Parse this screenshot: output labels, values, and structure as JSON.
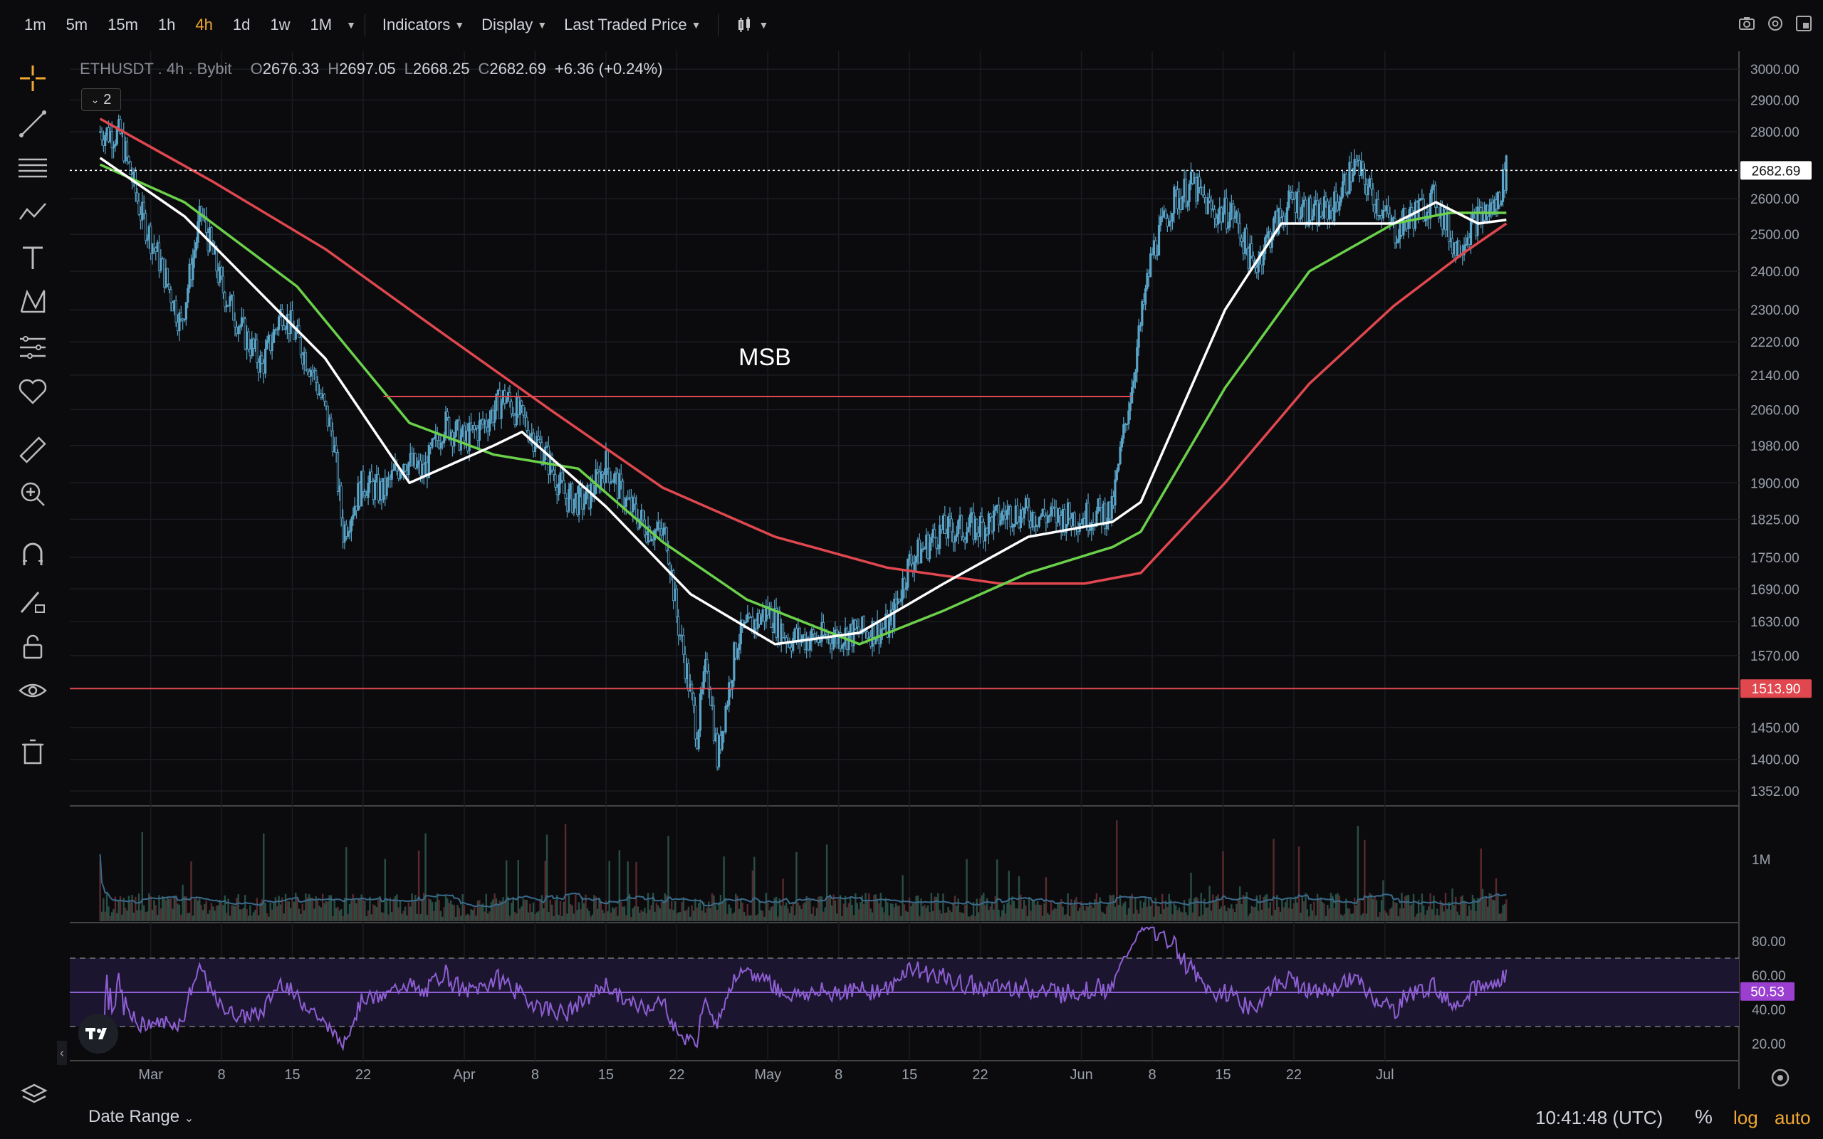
{
  "toolbar": {
    "timeframes": [
      "1m",
      "5m",
      "15m",
      "1h",
      "4h",
      "1d",
      "1w",
      "1M"
    ],
    "active_timeframe": "4h",
    "indicators_label": "Indicators",
    "display_label": "Display",
    "price_type_label": "Last Traded Price"
  },
  "legend": {
    "symbol": "ETHUSDT",
    "interval": "4h",
    "exchange": "Bybit",
    "o_label": "O",
    "o": "2676.33",
    "h_label": "H",
    "h": "2697.05",
    "l_label": "L",
    "l": "2668.25",
    "c_label": "C",
    "c": "2682.69",
    "change": "+6.36 (+0.24%)",
    "indicator_count": "2"
  },
  "bottom": {
    "date_range_label": "Date Range",
    "clock": "10:41:48 (UTC)",
    "percent_label": "%",
    "log_label": "log",
    "auto_label": "auto"
  },
  "colors": {
    "background": "#0b0b0e",
    "candle": "#5aa4c8",
    "ma_white": "#ffffff",
    "ma_green": "#6bd14a",
    "ma_red": "#e0474e",
    "rsi": "#8d5fd3",
    "accent": "#f0a830"
  },
  "chart_data": [
    {
      "type": "line",
      "subtype": "candlestick",
      "scale": "log",
      "x_ticks": [
        "Mar",
        "8",
        "15",
        "22",
        "Apr",
        "8",
        "15",
        "22",
        "May",
        "8",
        "15",
        "22",
        "Jun",
        "8",
        "15",
        "22",
        "Jul"
      ],
      "y_ticks": [
        3000,
        2900,
        2800,
        2600,
        2500,
        2400,
        2300,
        2220,
        2140,
        2060,
        1980,
        1900,
        1825,
        1750,
        1690,
        1630,
        1570,
        1450,
        1400,
        1352
      ],
      "ylim": [
        1330,
        3060
      ],
      "price_path": [
        [
          "2024-02-25",
          2800
        ],
        [
          "2024-02-27",
          2790
        ],
        [
          "2024-02-29",
          2560
        ],
        [
          "2024-03-02",
          2420
        ],
        [
          "2024-03-04",
          2260
        ],
        [
          "2024-03-06",
          2560
        ],
        [
          "2024-03-08",
          2360
        ],
        [
          "2024-03-10",
          2250
        ],
        [
          "2024-03-12",
          2160
        ],
        [
          "2024-03-14",
          2300
        ],
        [
          "2024-03-17",
          2150
        ],
        [
          "2024-03-19",
          2000
        ],
        [
          "2024-03-20",
          1800
        ],
        [
          "2024-03-22",
          1900
        ],
        [
          "2024-03-24",
          1880
        ],
        [
          "2024-03-26",
          1950
        ],
        [
          "2024-03-28",
          1920
        ],
        [
          "2024-03-30",
          2030
        ],
        [
          "2024-04-01",
          1990
        ],
        [
          "2024-04-03",
          2030
        ],
        [
          "2024-04-05",
          2090
        ],
        [
          "2024-04-07",
          2030
        ],
        [
          "2024-04-09",
          1960
        ],
        [
          "2024-04-11",
          1870
        ],
        [
          "2024-04-13",
          1860
        ],
        [
          "2024-04-15",
          1940
        ],
        [
          "2024-04-17",
          1860
        ],
        [
          "2024-04-19",
          1810
        ],
        [
          "2024-04-21",
          1790
        ],
        [
          "2024-04-22",
          1640
        ],
        [
          "2024-04-24",
          1440
        ],
        [
          "2024-04-25",
          1560
        ],
        [
          "2024-04-26",
          1400
        ],
        [
          "2024-04-28",
          1600
        ],
        [
          "2024-05-01",
          1650
        ],
        [
          "2024-05-03",
          1600
        ],
        [
          "2024-05-06",
          1600
        ],
        [
          "2024-05-10",
          1610
        ],
        [
          "2024-05-13",
          1620
        ],
        [
          "2024-05-15",
          1740
        ],
        [
          "2024-05-18",
          1800
        ],
        [
          "2024-05-22",
          1810
        ],
        [
          "2024-05-25",
          1840
        ],
        [
          "2024-05-29",
          1830
        ],
        [
          "2024-06-01",
          1830
        ],
        [
          "2024-06-04",
          1840
        ],
        [
          "2024-06-06",
          2120
        ],
        [
          "2024-06-08",
          2450
        ],
        [
          "2024-06-10",
          2590
        ],
        [
          "2024-06-12",
          2640
        ],
        [
          "2024-06-14",
          2560
        ],
        [
          "2024-06-16",
          2560
        ],
        [
          "2024-06-18",
          2410
        ],
        [
          "2024-06-20",
          2520
        ],
        [
          "2024-06-22",
          2600
        ],
        [
          "2024-06-24",
          2550
        ],
        [
          "2024-06-26",
          2580
        ],
        [
          "2024-06-28",
          2700
        ],
        [
          "2024-06-30",
          2600
        ],
        [
          "2024-07-02",
          2510
        ],
        [
          "2024-07-04",
          2560
        ],
        [
          "2024-07-06",
          2600
        ],
        [
          "2024-07-08",
          2460
        ],
        [
          "2024-07-10",
          2540
        ],
        [
          "2024-07-12",
          2580
        ],
        [
          "2024-07-13",
          2682.69
        ]
      ],
      "moving_averages": {
        "white": [
          [
            0,
            2720
          ],
          [
            0.06,
            2550
          ],
          [
            0.16,
            2180
          ],
          [
            0.22,
            1900
          ],
          [
            0.28,
            1980
          ],
          [
            0.3,
            2010
          ],
          [
            0.36,
            1850
          ],
          [
            0.42,
            1680
          ],
          [
            0.48,
            1590
          ],
          [
            0.54,
            1610
          ],
          [
            0.6,
            1700
          ],
          [
            0.66,
            1790
          ],
          [
            0.72,
            1820
          ],
          [
            0.74,
            1860
          ],
          [
            0.8,
            2300
          ],
          [
            0.84,
            2530
          ],
          [
            0.92,
            2530
          ],
          [
            0.95,
            2590
          ],
          [
            0.98,
            2530
          ],
          [
            1.0,
            2540
          ]
        ],
        "green": [
          [
            0,
            2700
          ],
          [
            0.06,
            2590
          ],
          [
            0.14,
            2360
          ],
          [
            0.22,
            2030
          ],
          [
            0.28,
            1960
          ],
          [
            0.34,
            1930
          ],
          [
            0.4,
            1780
          ],
          [
            0.46,
            1670
          ],
          [
            0.54,
            1590
          ],
          [
            0.6,
            1650
          ],
          [
            0.66,
            1720
          ],
          [
            0.72,
            1770
          ],
          [
            0.74,
            1800
          ],
          [
            0.8,
            2110
          ],
          [
            0.86,
            2400
          ],
          [
            0.92,
            2530
          ],
          [
            0.96,
            2560
          ],
          [
            1.0,
            2560
          ]
        ],
        "red": [
          [
            0,
            2840
          ],
          [
            0.08,
            2650
          ],
          [
            0.16,
            2460
          ],
          [
            0.24,
            2250
          ],
          [
            0.32,
            2060
          ],
          [
            0.4,
            1890
          ],
          [
            0.48,
            1790
          ],
          [
            0.56,
            1730
          ],
          [
            0.64,
            1700
          ],
          [
            0.7,
            1700
          ],
          [
            0.74,
            1720
          ],
          [
            0.8,
            1900
          ],
          [
            0.86,
            2120
          ],
          [
            0.92,
            2310
          ],
          [
            0.97,
            2450
          ],
          [
            1.0,
            2530
          ]
        ]
      },
      "price_lines": [
        {
          "value": 2682.69,
          "label": "2682.69",
          "style": "dotted",
          "color": "#ffffff"
        },
        {
          "value": 1513.9,
          "label": "1513.90",
          "style": "solid",
          "color": "#e0474e"
        }
      ],
      "annotations": [
        {
          "text": "MSB",
          "from": "2024-03-24",
          "to": "2024-06-06",
          "value": 2090,
          "color": "#e0474e"
        }
      ]
    },
    {
      "type": "bar",
      "subtype": "volume",
      "y_ticks": [
        "1M"
      ]
    },
    {
      "type": "line",
      "subtype": "RSI",
      "y_ticks": [
        80,
        60,
        40,
        20
      ],
      "ylim": [
        10,
        90
      ],
      "bands": [
        30,
        70
      ],
      "current": "50.53"
    }
  ]
}
